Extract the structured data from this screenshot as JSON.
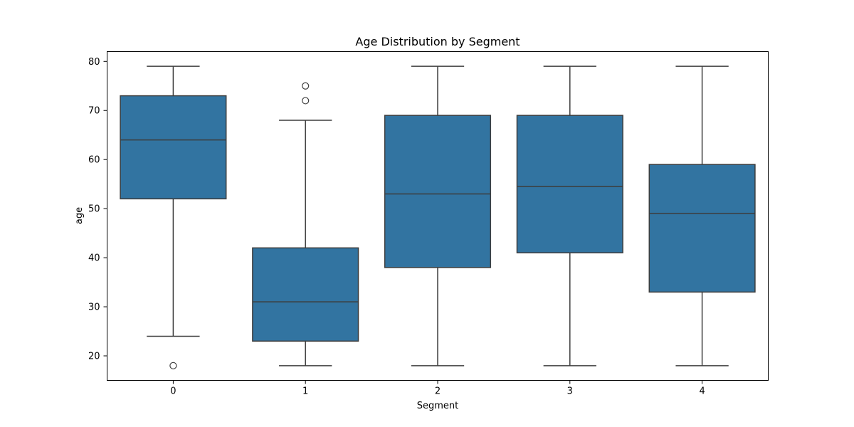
{
  "chart_data": {
    "type": "box",
    "title": "Age Distribution by Segment",
    "xlabel": "Segment",
    "ylabel": "age",
    "ylim": [
      15.0,
      82.0
    ],
    "yticks": [
      "20",
      "30",
      "40",
      "50",
      "60",
      "70",
      "80"
    ],
    "categories": [
      "0",
      "1",
      "2",
      "3",
      "4"
    ],
    "boxes": [
      {
        "category": "0",
        "whisker_low": 24,
        "q1": 52,
        "median": 64,
        "q3": 73,
        "whisker_high": 79,
        "outliers": [
          18
        ]
      },
      {
        "category": "1",
        "whisker_low": 18,
        "q1": 23,
        "median": 31,
        "q3": 42,
        "whisker_high": 68,
        "outliers": [
          72,
          75
        ]
      },
      {
        "category": "2",
        "whisker_low": 18,
        "q1": 38,
        "median": 53,
        "q3": 69,
        "whisker_high": 79,
        "outliers": []
      },
      {
        "category": "3",
        "whisker_low": 18,
        "q1": 41,
        "median": 54.5,
        "q3": 69,
        "whisker_high": 79,
        "outliers": []
      },
      {
        "category": "4",
        "whisker_low": 18,
        "q1": 33,
        "median": 49,
        "q3": 59,
        "whisker_high": 79,
        "outliers": []
      }
    ],
    "colors": {
      "box_fill": "#3274a1",
      "line": "#3d3d3d",
      "axes": "#000000"
    },
    "grid": false,
    "legend": "none"
  }
}
